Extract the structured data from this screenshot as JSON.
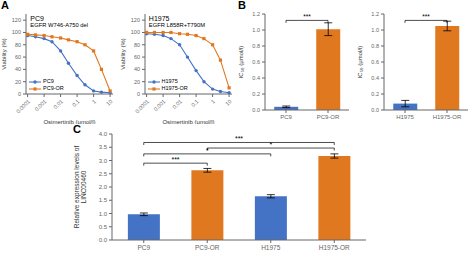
{
  "chart_data": [
    {
      "type": "line",
      "title": "PC9",
      "subtitle": "EGFR W746-A750 del",
      "x_label": "Osimertinib (μmol/l)",
      "y_label": "Viability (%)",
      "x": [
        0.0001,
        0.0003,
        0.001,
        0.003,
        0.01,
        0.03,
        0.1,
        0.3,
        1,
        3,
        10
      ],
      "series": [
        {
          "name": "PC9",
          "color": "#4472c4",
          "marker": "circle",
          "values": [
            95,
            93,
            90,
            85,
            70,
            50,
            30,
            15,
            5,
            3,
            2
          ]
        },
        {
          "name": "PC9-OR",
          "color": "#e07820",
          "marker": "square",
          "values": [
            97,
            96,
            95,
            93,
            91,
            88,
            85,
            80,
            70,
            40,
            5
          ]
        }
      ],
      "log": "x",
      "xlim": [
        8e-05,
        15
      ],
      "xticks": [
        0.0001,
        0.001,
        0.01,
        0.1,
        1,
        10
      ],
      "ylim": [
        0,
        130
      ],
      "yticks": [
        0,
        20,
        40,
        60,
        80,
        100,
        120
      ],
      "legend": "lower left",
      "grid": false,
      "annotations": [
        {
          "text": "A"
        }
      ]
    },
    {
      "type": "line",
      "title": "H1975",
      "subtitle": "EGFR L858R+T790M",
      "x_label": "Osimertinib (μmol/l)",
      "y_label": "Viability (%)",
      "x": [
        0.0001,
        0.0003,
        0.001,
        0.003,
        0.01,
        0.03,
        0.1,
        0.3,
        1,
        3,
        10
      ],
      "series": [
        {
          "name": "H1975",
          "color": "#4472c4",
          "marker": "circle",
          "values": [
            98,
            97,
            95,
            90,
            80,
            60,
            38,
            20,
            8,
            4,
            2
          ]
        },
        {
          "name": "H1975-OR",
          "color": "#e07820",
          "marker": "square",
          "values": [
            100,
            100,
            100,
            100,
            98,
            97,
            95,
            90,
            80,
            55,
            10
          ]
        }
      ],
      "log": "x",
      "xlim": [
        8e-05,
        15
      ],
      "xticks": [
        0.0001,
        0.001,
        0.01,
        0.1,
        1,
        10
      ],
      "ylim": [
        0,
        130
      ],
      "yticks": [
        0,
        20,
        40,
        60,
        80,
        100,
        120
      ],
      "legend": "lower left",
      "grid": false
    },
    {
      "type": "bar",
      "y_label": "IC₅₀ (μmol/l)",
      "categories": [
        "PC9",
        "PC9-OR"
      ],
      "values": [
        0.04,
        1.01
      ],
      "errors": [
        0.01,
        0.08
      ],
      "colors": [
        "#4472c4",
        "#e07820"
      ],
      "ylim": [
        0,
        1.2
      ],
      "yticks": [
        {
          "value": 0,
          "label": "0.0"
        },
        0.2,
        0.4,
        0.6,
        0.8,
        {
          "value": 1,
          "label": "1.0"
        },
        1.2
      ],
      "grid": false,
      "annotations": [
        {
          "text": "B"
        },
        {
          "text": "***",
          "x1": "PC9",
          "x2": "PC9-OR",
          "y": 1.12
        }
      ]
    },
    {
      "type": "bar",
      "y_label": "IC₅₀ (μmol/l)",
      "categories": [
        "H1975",
        "H1975-OR"
      ],
      "values": [
        0.08,
        1.05
      ],
      "errors": [
        0.04,
        0.06
      ],
      "colors": [
        "#4472c4",
        "#e07820"
      ],
      "ylim": [
        0,
        1.2
      ],
      "yticks": [
        {
          "value": 0,
          "label": "0.0"
        },
        0.2,
        0.4,
        0.6,
        0.8,
        {
          "value": 1,
          "label": "1.0"
        },
        1.2
      ],
      "grid": false,
      "annotations": [
        {
          "text": "***",
          "x1": "H1975",
          "x2": "H1975-OR",
          "y": 1.12
        }
      ]
    },
    {
      "type": "bar",
      "y_label": "Relative expression levels of\nLINC00460",
      "categories": [
        "PC9",
        "PC9-OR",
        "H1975",
        "H1975-OR"
      ],
      "values": [
        0.97,
        2.63,
        1.65,
        3.17
      ],
      "errors": [
        0.05,
        0.07,
        0.06,
        0.08
      ],
      "colors": [
        "#4472c4",
        "#e07820",
        "#4472c4",
        "#e07820"
      ],
      "ylim": [
        0,
        4.0
      ],
      "yticks": [
        {
          "value": 0,
          "label": "0.0"
        },
        0.5,
        {
          "value": 1,
          "label": "1.0"
        },
        1.5,
        {
          "value": 2,
          "label": "2.0"
        },
        2.5,
        {
          "value": 3,
          "label": "3.0"
        },
        3.5,
        {
          "value": 4,
          "label": "4.0"
        }
      ],
      "grid": false,
      "annotations": [
        {
          "text": "C"
        },
        {
          "text": "***",
          "x1": "PC9",
          "x2": "PC9-OR",
          "y": 2.9
        },
        {
          "text": "*",
          "x1": "PC9",
          "x2": "H1975",
          "y": 3.25
        },
        {
          "text": "***",
          "x1": "PC9",
          "x2": "H1975-OR",
          "y": 3.68
        },
        {
          "text": "*",
          "x1": "PC9-OR",
          "x2": "H1975-OR",
          "y": 3.47
        }
      ]
    }
  ]
}
